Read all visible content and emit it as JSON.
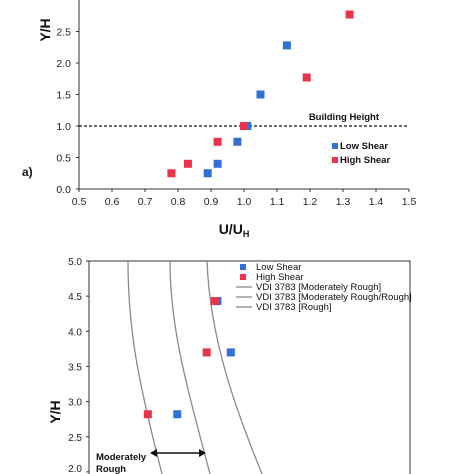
{
  "chart_data": [
    {
      "type": "scatter",
      "panel_label": "a)",
      "xlabel": "U/U",
      "xlabel_sub": "H",
      "ylabel": "Y/H",
      "xlim": [
        0.5,
        1.5
      ],
      "ylim": [
        0,
        3.0
      ],
      "x_ticks": [
        "0.5",
        "0.6",
        "0.7",
        "0.8",
        "0.9",
        "1.0",
        "1.1",
        "1.2",
        "1.3",
        "1.4",
        "1.5"
      ],
      "y_ticks": [
        "0.0",
        "0.5",
        "1.0",
        "1.5",
        "2.0",
        "2.5"
      ],
      "grid": false,
      "legend_position": "right",
      "reference_line": {
        "y": 1.0,
        "label": "Building Height"
      },
      "series": [
        {
          "name": "Low Shear",
          "color": "#2f6fd6",
          "points": [
            [
              0.89,
              0.25
            ],
            [
              0.92,
              0.4
            ],
            [
              0.98,
              0.75
            ],
            [
              1.01,
              1.0
            ],
            [
              1.05,
              1.5
            ],
            [
              1.13,
              2.28
            ]
          ]
        },
        {
          "name": "High Shear",
          "color": "#e8334a",
          "points": [
            [
              0.78,
              0.25
            ],
            [
              0.83,
              0.4
            ],
            [
              0.92,
              0.75
            ],
            [
              1.0,
              1.0
            ],
            [
              1.19,
              1.77
            ],
            [
              1.32,
              2.77
            ]
          ]
        }
      ]
    },
    {
      "type": "scatter",
      "ylabel": "Y/H",
      "ylim": [
        2.0,
        5.0
      ],
      "y_ticks": [
        "2.0",
        "2.5",
        "3.0",
        "3.5",
        "4.0",
        "4.5",
        "5.0"
      ],
      "grid": false,
      "legend_position": "top-right",
      "annotation": {
        "line1": "Moderately",
        "line2": "Rough"
      },
      "series": [
        {
          "name": "Low Shear",
          "color": "#2f6fd6",
          "points": [
            [
              0.73,
              2.82
            ],
            [
              0.93,
              3.7
            ],
            [
              0.88,
              4.43
            ]
          ]
        },
        {
          "name": "High Shear",
          "color": "#e8334a",
          "points": [
            [
              0.62,
              2.82
            ],
            [
              0.84,
              3.7
            ],
            [
              0.87,
              4.43
            ]
          ]
        }
      ],
      "curves": [
        {
          "name": "VDI 3783 [Moderately Rough]",
          "color": "#8a8a8a"
        },
        {
          "name": "VDI 3783 [Moderately Rough/Rough]",
          "color": "#8a8a8a"
        },
        {
          "name": "VDI 3783 [Rough]",
          "color": "#8a8a8a"
        }
      ]
    }
  ]
}
